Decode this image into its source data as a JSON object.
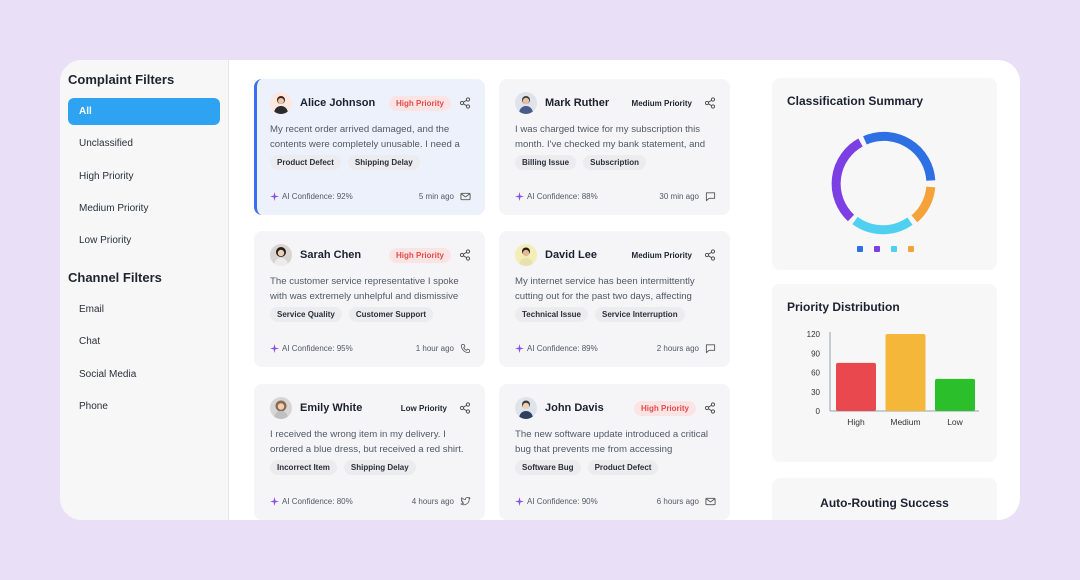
{
  "sidebar": {
    "complaint_title": "Complaint Filters",
    "complaint_filters": [
      "All",
      "Unclassified",
      "High Priority",
      "Medium Priority",
      "Low Priority"
    ],
    "channel_title": "Channel Filters",
    "channel_filters": [
      "Email",
      "Chat",
      "Social Media",
      "Phone"
    ]
  },
  "cards": [
    {
      "name": "Alice Johnson",
      "priority": "High Priority",
      "text": "My recent order arrived damaged, and the contents were completely unusable. I need a",
      "tags": [
        "Product Defect",
        "Shipping Delay"
      ],
      "confidence": "AI Confidence: 92%",
      "time": "5 min ago",
      "channel_icon": "mail-icon"
    },
    {
      "name": "Mark Ruther",
      "priority": "Medium Priority",
      "text": "I was charged twice for my subscription this month. I've checked my bank statement, and",
      "tags": [
        "Billing Issue",
        "Subscription"
      ],
      "confidence": "AI Confidence: 88%",
      "time": "30 min ago",
      "channel_icon": "chat-icon"
    },
    {
      "name": "Sarah Chen",
      "priority": "High Priority",
      "text": "The customer service representative I spoke with was extremely unhelpful and dismissive",
      "tags": [
        "Service Quality",
        "Customer Support"
      ],
      "confidence": "AI Confidence: 95%",
      "time": "1 hour ago",
      "channel_icon": "phone-icon"
    },
    {
      "name": "David Lee",
      "priority": "Medium Priority",
      "text": "My internet service has been intermittently cutting out for the past two days, affecting",
      "tags": [
        "Technical Issue",
        "Service Interruption"
      ],
      "confidence": "AI Confidence: 89%",
      "time": "2 hours ago",
      "channel_icon": "chat-icon"
    },
    {
      "name": "Emily White",
      "priority": "Low Priority",
      "text": "I received the wrong item in my delivery. I ordered a blue dress, but received a red shirt.",
      "tags": [
        "Incorrect Item",
        "Shipping Delay"
      ],
      "confidence": "AI Confidence: 80%",
      "time": "4 hours ago",
      "channel_icon": "twitter-icon"
    },
    {
      "name": "John Davis",
      "priority": "High Priority",
      "text": "The new software update introduced a critical bug that prevents me from accessing",
      "tags": [
        "Software Bug",
        "Product Defect"
      ],
      "confidence": "AI Confidence: 90%",
      "time": "6 hours ago",
      "channel_icon": "mail-icon"
    }
  ],
  "classification": {
    "title": "Classification Summary",
    "colors": [
      "#2f6fe4",
      "#7b3fe4",
      "#4fd0f0",
      "#f5a23a"
    ]
  },
  "priority_distribution": {
    "title": "Priority Distribution"
  },
  "auto_routing": {
    "title": "Auto-Routing Success"
  },
  "chart_data": {
    "type": "bar",
    "title": "Priority Distribution",
    "categories": [
      "High",
      "Medium",
      "Low"
    ],
    "values": [
      75,
      120,
      50
    ],
    "ylim": [
      0,
      120
    ],
    "yticks": [
      "120",
      "90",
      "60",
      "30",
      "0"
    ],
    "colors": [
      "#e9484f",
      "#f5b73a",
      "#2bc02b"
    ]
  }
}
